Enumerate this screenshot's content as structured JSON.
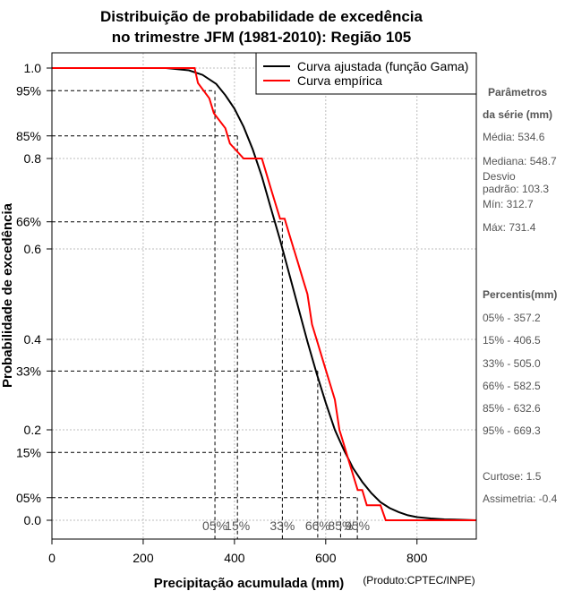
{
  "chart_data": {
    "type": "line",
    "title_line1": "Distribuição de probabilidade de excedência",
    "title_line2": "no trimestre JFM (1981-2010): Região 105",
    "xlabel": "Precipitação acumulada (mm)",
    "ylabel": "Probabilidade de excedência",
    "credit": "(Produto:CPTEC/INPE)",
    "xlim": [
      0,
      930
    ],
    "ylim": [
      0,
      1
    ],
    "x_ticks": [
      0,
      200,
      400,
      600,
      800
    ],
    "x_tick_labels": [
      "0",
      "200",
      "400",
      "600",
      "800"
    ],
    "y_ticks": [
      {
        "value": 1.0,
        "label": "1.0"
      },
      {
        "value": 0.95,
        "label": "95%"
      },
      {
        "value": 0.85,
        "label": "85%"
      },
      {
        "value": 0.8,
        "label": "0.8"
      },
      {
        "value": 0.66,
        "label": "66%"
      },
      {
        "value": 0.6,
        "label": "0.6"
      },
      {
        "value": 0.4,
        "label": "0.4"
      },
      {
        "value": 0.33,
        "label": "33%"
      },
      {
        "value": 0.2,
        "label": "0.2"
      },
      {
        "value": 0.15,
        "label": "15%"
      },
      {
        "value": 0.05,
        "label": "05%"
      },
      {
        "value": 0.0,
        "label": "0.0"
      }
    ],
    "grid_x": [
      0,
      200,
      400,
      600,
      800
    ],
    "grid_y": [
      0,
      0.2,
      0.4,
      0.6,
      0.8,
      1.0
    ],
    "legend": {
      "position": "top-right",
      "entries": [
        {
          "label": "Curva ajustada (função Gama)",
          "color": "#000000"
        },
        {
          "label": "Curva empírica",
          "color": "#ff0000"
        }
      ]
    },
    "series": [
      {
        "name": "Curva ajustada (função Gama)",
        "color": "#000000",
        "x": [
          250,
          300,
          330,
          360,
          380,
          400,
          420,
          440,
          460,
          480,
          500,
          520,
          540,
          560,
          580,
          600,
          620,
          640,
          660,
          680,
          700,
          720,
          740,
          760,
          780,
          800,
          830,
          860,
          900,
          930
        ],
        "y": [
          1.0,
          0.995,
          0.985,
          0.965,
          0.94,
          0.91,
          0.87,
          0.82,
          0.76,
          0.69,
          0.62,
          0.545,
          0.47,
          0.395,
          0.325,
          0.26,
          0.2,
          0.155,
          0.115,
          0.085,
          0.06,
          0.04,
          0.027,
          0.018,
          0.011,
          0.007,
          0.004,
          0.002,
          0.001,
          0.0
        ]
      },
      {
        "name": "Curva empírica",
        "color": "#ff0000",
        "x": [
          0,
          312.7,
          320,
          345,
          355,
          380,
          390,
          420,
          430,
          460,
          470,
          480,
          490,
          500,
          510,
          520,
          530,
          540,
          550,
          560,
          570,
          580,
          600,
          610,
          620,
          630,
          640,
          650,
          660,
          670,
          680,
          690,
          700,
          710,
          720,
          731.4,
          930
        ],
        "y": [
          1.0,
          1.0,
          0.967,
          0.933,
          0.9,
          0.867,
          0.833,
          0.8,
          0.8,
          0.8,
          0.767,
          0.733,
          0.7,
          0.667,
          0.667,
          0.633,
          0.6,
          0.567,
          0.533,
          0.5,
          0.433,
          0.4,
          0.333,
          0.3,
          0.267,
          0.2,
          0.167,
          0.133,
          0.1,
          0.067,
          0.067,
          0.033,
          0.033,
          0.033,
          0.033,
          0.0,
          0.0
        ]
      }
    ],
    "percentile_lines": [
      {
        "label": "05%",
        "x": 357.2,
        "p": 0.95
      },
      {
        "label": "15%",
        "x": 406.5,
        "p": 0.85
      },
      {
        "label": "33%",
        "x": 505.0,
        "p": 0.66
      },
      {
        "label": "66%",
        "x": 582.5,
        "p": 0.33
      },
      {
        "label": "85%",
        "x": 632.6,
        "p": 0.15
      },
      {
        "label": "95%",
        "x": 669.3,
        "p": 0.05
      }
    ]
  },
  "side_panel": {
    "params_head1": "Parâmetros",
    "params_head2": "da série (mm)",
    "media": "Média: 534.6",
    "mediana": "Mediana: 548.7",
    "desvio1": "Desvio",
    "desvio2": "padrão: 103.3",
    "min": "Mín: 312.7",
    "max": "Máx: 731.4",
    "percentis_head": "Percentis(mm)",
    "p05": "05% - 357.2",
    "p15": "15% - 406.5",
    "p33": "33% - 505.0",
    "p66": "66% - 582.5",
    "p85": "85% - 632.6",
    "p95": "95% - 669.3",
    "curtose": "Curtose: 1.5",
    "assimetria": "Assimetria: -0.4"
  }
}
